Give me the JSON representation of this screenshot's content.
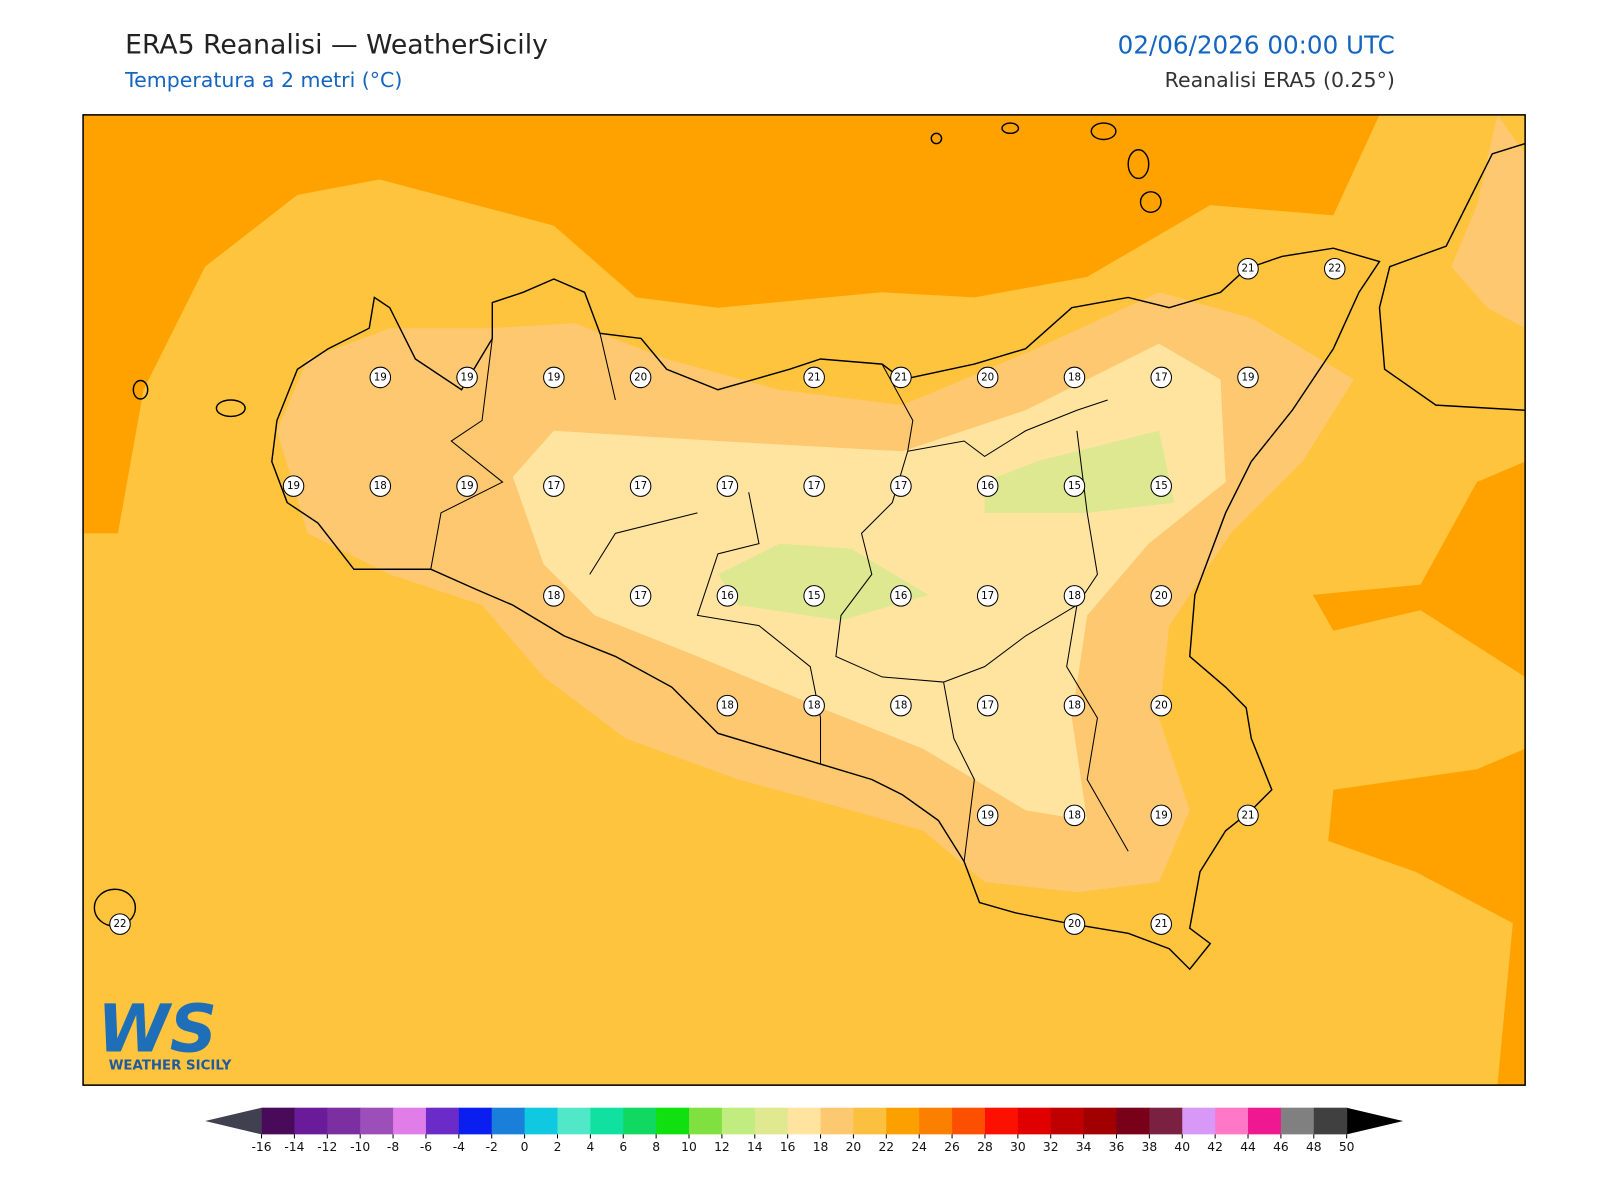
{
  "header": {
    "title": "ERA5 Reanalisi — WeatherSicily",
    "subtitle": "Temperatura a 2 metri (°C)",
    "datetime": "02/06/2026 00:00 UTC",
    "source": "Reanalisi ERA5 (0.25°)"
  },
  "stations": [
    21,
    22,
    19,
    19,
    19,
    20,
    21,
    21,
    20,
    18,
    17,
    19,
    19,
    18,
    19,
    17,
    17,
    17,
    17,
    17,
    16,
    15,
    15,
    18,
    17,
    16,
    15,
    16,
    17,
    18,
    20,
    18,
    18,
    18,
    17,
    18,
    20,
    19,
    18,
    19,
    21,
    22,
    20,
    21
  ],
  "colorbar": {
    "ticks": [
      -16,
      -14,
      -12,
      -10,
      -8,
      -6,
      -4,
      -2,
      0,
      2,
      4,
      6,
      8,
      10,
      12,
      14,
      16,
      18,
      20,
      22,
      24,
      26,
      28,
      30,
      32,
      34,
      36,
      38,
      40,
      42,
      44,
      46,
      48,
      50
    ],
    "colors": [
      "#4a0a5a",
      "#6a1b9a",
      "#7b2fa0",
      "#9c4fb8",
      "#e07de8",
      "#6a2bc8",
      "#0a1ef0",
      "#1a7fd8",
      "#10c8e0",
      "#50e8c8",
      "#10e0a0",
      "#10d860",
      "#10e010",
      "#80e040",
      "#c0ec80",
      "#e0e890",
      "#ffe4a0",
      "#fcc870",
      "#fcc040",
      "#fca000",
      "#fc8000",
      "#fc5000",
      "#fc1000",
      "#e00000",
      "#c00000",
      "#a00000",
      "#780018",
      "#7a2040",
      "#d898f8",
      "#ff78c8",
      "#f01890",
      "#808080",
      "#404040"
    ]
  },
  "logo": {
    "mark": "WS",
    "name": "WEATHER SICILY"
  }
}
